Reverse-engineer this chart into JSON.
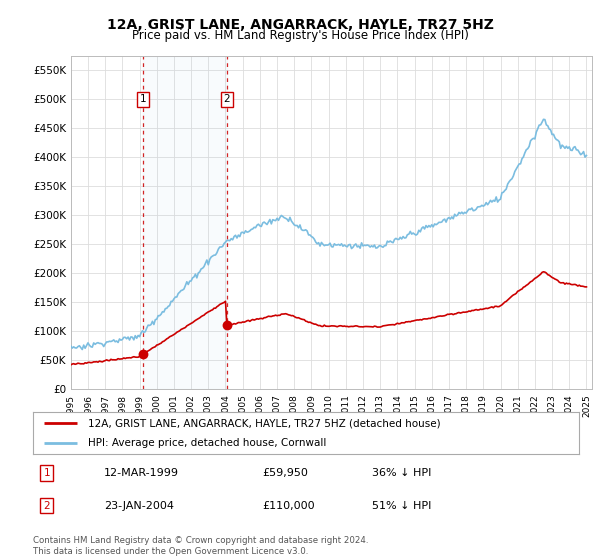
{
  "title": "12A, GRIST LANE, ANGARRACK, HAYLE, TR27 5HZ",
  "subtitle": "Price paid vs. HM Land Registry's House Price Index (HPI)",
  "legend_line1": "12A, GRIST LANE, ANGARRACK, HAYLE, TR27 5HZ (detached house)",
  "legend_line2": "HPI: Average price, detached house, Cornwall",
  "transaction1_date": "12-MAR-1999",
  "transaction1_price": "£59,950",
  "transaction1_hpi": "36% ↓ HPI",
  "transaction2_date": "23-JAN-2004",
  "transaction2_price": "£110,000",
  "transaction2_hpi": "51% ↓ HPI",
  "footer": "Contains HM Land Registry data © Crown copyright and database right 2024.\nThis data is licensed under the Open Government Licence v3.0.",
  "hpi_color": "#7bbde0",
  "price_color": "#cc0000",
  "vline_color": "#cc0000",
  "grid_color": "#dddddd",
  "ylim": [
    0,
    575000
  ],
  "yticks": [
    0,
    50000,
    100000,
    150000,
    200000,
    250000,
    300000,
    350000,
    400000,
    450000,
    500000,
    550000
  ],
  "transaction1_year": 1999.19,
  "transaction2_year": 2004.07,
  "transaction1_value": 59950,
  "transaction2_value": 110000
}
